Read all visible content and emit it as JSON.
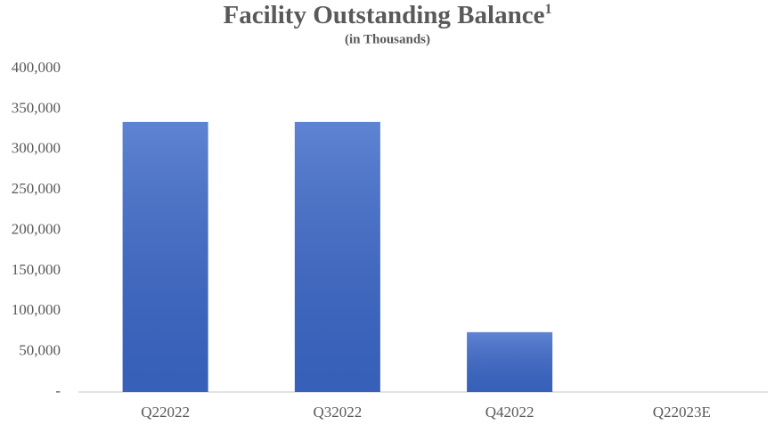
{
  "chart_data": {
    "type": "bar",
    "title": "Facility Outstanding Balance",
    "title_superscript": "1",
    "subtitle": "(in Thousands)",
    "categories": [
      "Q22022",
      "Q32022",
      "Q42022",
      "Q22023E"
    ],
    "values": [
      334000,
      334000,
      74000,
      0
    ],
    "color": "#3b68c9",
    "ylim": [
      0,
      400000
    ],
    "yticks": [
      {
        "value": 0,
        "label": "-"
      },
      {
        "value": 50000,
        "label": "50,000"
      },
      {
        "value": 100000,
        "label": "100,000"
      },
      {
        "value": 150000,
        "label": "150,000"
      },
      {
        "value": 200000,
        "label": "200,000"
      },
      {
        "value": 250000,
        "label": "250,000"
      },
      {
        "value": 300000,
        "label": "300,000"
      },
      {
        "value": 350000,
        "label": "350,000"
      },
      {
        "value": 400000,
        "label": "400,000"
      }
    ],
    "grid": false
  }
}
